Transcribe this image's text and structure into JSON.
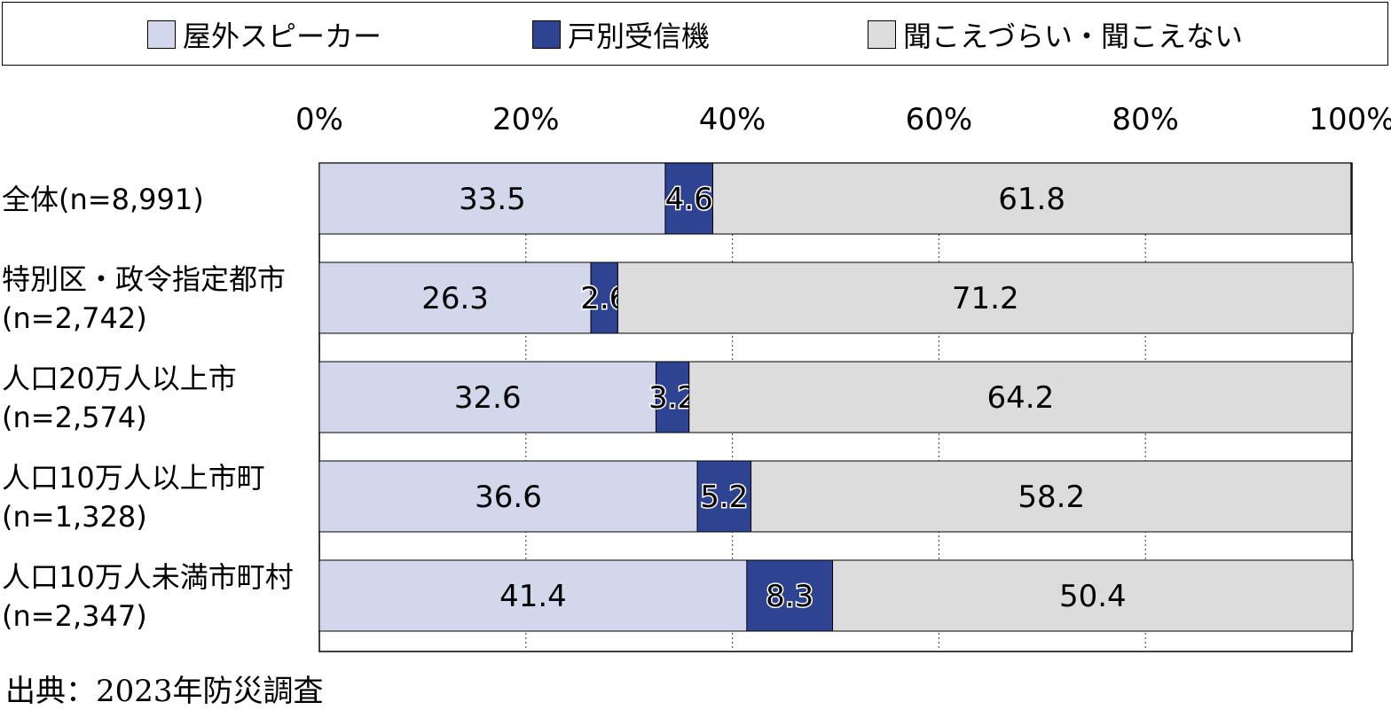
{
  "legend": [
    {
      "label": "屋外スピーカー",
      "color": "#d3d7eb"
    },
    {
      "label": "戸別受信機",
      "color": "#2e4492"
    },
    {
      "label": "聞こえづらい・聞こえない",
      "color": "#dcdcdc"
    }
  ],
  "source": "出典：2023年防災調査",
  "chart_data": {
    "type": "bar",
    "orientation": "horizontal",
    "stacked": true,
    "categories": [
      [
        "全体(n=8,991)"
      ],
      [
        "特別区・政令指定都市",
        "(n=2,742)"
      ],
      [
        "人口20万人以上市",
        "(n=2,574)"
      ],
      [
        "人口10万人以上市町",
        "(n=1,328)"
      ],
      [
        "人口10万人未満市町村",
        "(n=2,347)"
      ]
    ],
    "series": [
      {
        "name": "屋外スピーカー",
        "values": [
          33.5,
          26.3,
          32.6,
          36.6,
          41.4
        ],
        "labels": [
          "33.5",
          "26.3",
          "32.6",
          "36.6",
          "41.4"
        ],
        "color": "#d3d7eb"
      },
      {
        "name": "戸別受信機",
        "values": [
          4.6,
          2.6,
          3.2,
          5.2,
          8.3
        ],
        "labels": [
          "4.6",
          "2.6",
          "3.2",
          "5.2",
          "8.3"
        ],
        "color": "#2e4492"
      },
      {
        "name": "聞こえづらい・聞こえない",
        "values": [
          61.8,
          71.2,
          64.2,
          58.2,
          50.4
        ],
        "labels": [
          "61.8",
          "71.2",
          "64.2",
          "58.2",
          "50.4"
        ],
        "color": "#dcdcdc"
      }
    ],
    "xlim": [
      0,
      100
    ],
    "xticks": [
      0,
      20,
      40,
      60,
      80,
      100
    ],
    "xtick_labels": [
      "0%",
      "20%",
      "40%",
      "60%",
      "80%",
      "100%"
    ],
    "grid": true,
    "legend_position": "top"
  }
}
